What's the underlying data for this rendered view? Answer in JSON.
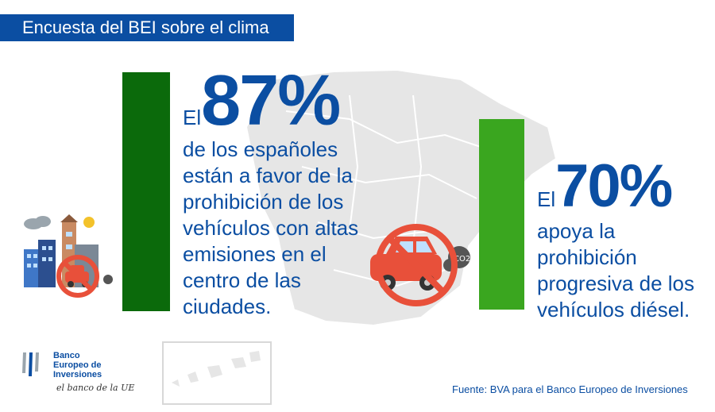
{
  "header": {
    "title": "Encuesta del BEI sobre el clima"
  },
  "stat1": {
    "prefix": "El",
    "value": "87%",
    "lines": [
      "de los españoles",
      "están a favor de la",
      "prohibición de los",
      "vehículos con altas",
      "emisiones en el",
      "centro de las",
      "ciudades."
    ],
    "bar_value": 87,
    "bar_color": "#0b6a0b"
  },
  "stat2": {
    "prefix": "El",
    "value": "70%",
    "lines": [
      "apoya la",
      "prohibición",
      "progresiva de los",
      "vehículos diésel."
    ],
    "bar_value": 70,
    "bar_color": "#3aa61f"
  },
  "source": "Fuente: BVA para el Banco Europeo de Inversiones",
  "logo": {
    "name_lines": [
      "Banco",
      "Europeo de",
      "Inversiones"
    ],
    "tagline": "el banco de la UE"
  },
  "icons": [
    "city-no-car-icon",
    "no-car-co2-icon",
    "spain-map"
  ],
  "colors": {
    "brand_blue": "#0b4ea2",
    "map_gray": "#e6e6e6",
    "ban_red": "#e8503a"
  }
}
